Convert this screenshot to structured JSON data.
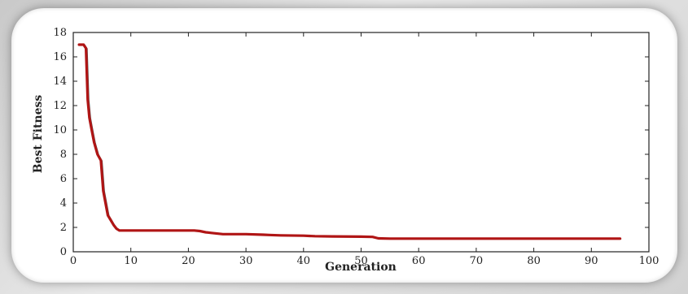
{
  "chart_data": {
    "type": "line",
    "title": "",
    "xlabel": "Generation",
    "ylabel": "Best Fitness",
    "xlim": [
      0,
      100
    ],
    "ylim": [
      0,
      18
    ],
    "xticks": [
      "0",
      "10",
      "20",
      "30",
      "40",
      "50",
      "60",
      "70",
      "80",
      "90",
      "100"
    ],
    "yticks": [
      "0",
      "2",
      "4",
      "6",
      "8",
      "10",
      "12",
      "14",
      "16",
      "18"
    ],
    "grid": false,
    "line_color": "#b01515",
    "series": [
      {
        "x": [
          1,
          1.8,
          2.2,
          2.5,
          2.8,
          3.2,
          3.6,
          4.2,
          4.8,
          5.2,
          5.6,
          6,
          6.5,
          7,
          7.5,
          8,
          9,
          12,
          15,
          18,
          21,
          22,
          23,
          24,
          26,
          30,
          33,
          34,
          36,
          40,
          42,
          45,
          50,
          52,
          53,
          55,
          60,
          70,
          80,
          90,
          95
        ],
        "y": [
          17.0,
          17.0,
          16.7,
          12.5,
          11.0,
          10.0,
          9.0,
          8.0,
          7.5,
          5.0,
          4.0,
          3.0,
          2.6,
          2.2,
          1.9,
          1.75,
          1.75,
          1.75,
          1.75,
          1.75,
          1.75,
          1.7,
          1.6,
          1.55,
          1.45,
          1.45,
          1.4,
          1.38,
          1.35,
          1.32,
          1.28,
          1.26,
          1.24,
          1.22,
          1.1,
          1.08,
          1.08,
          1.08,
          1.08,
          1.08,
          1.08
        ]
      }
    ]
  }
}
